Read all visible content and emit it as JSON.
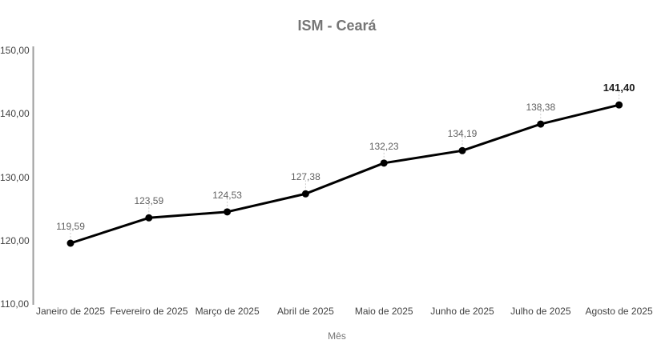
{
  "chart": {
    "title": "ISM - Ceará"
  },
  "chart_data": {
    "type": "line",
    "title": "ISM - Ceará",
    "xlabel": "Mês",
    "ylabel": "",
    "categories": [
      "Janeiro de 2025",
      "Fevereiro de 2025",
      "Março de 2025",
      "Abril de 2025",
      "Maio de 2025",
      "Junho de 2025",
      "Julho de 2025",
      "Agosto de 2025"
    ],
    "values": [
      119.59,
      123.59,
      124.53,
      127.38,
      132.23,
      134.19,
      138.38,
      141.4
    ],
    "value_labels": [
      "119,59",
      "123,59",
      "124,53",
      "127,38",
      "132,23",
      "134,19",
      "138,38",
      "141,40"
    ],
    "emphasized_label_index": 7,
    "yticks": [
      {
        "value": 110,
        "label": "110,00"
      },
      {
        "value": 120,
        "label": "120,00"
      },
      {
        "value": 130,
        "label": "130,00"
      },
      {
        "value": 140,
        "label": "140,00"
      },
      {
        "value": 150,
        "label": "150,00"
      }
    ],
    "ylim": [
      110,
      150
    ],
    "grid": false,
    "legend": "none",
    "colors": {
      "series": "#000000",
      "point": "#000000",
      "axis_line": "#9e9e9e",
      "leader_line": "#cccccc",
      "title": "#757575",
      "tick_label": "#424242",
      "value_label": "#616161",
      "emphasized_value_label": "#1a1a1a"
    }
  }
}
